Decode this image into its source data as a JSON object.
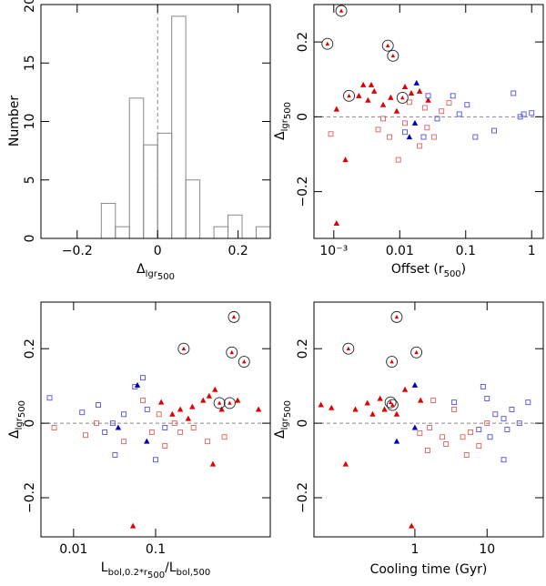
{
  "chart_data": [
    {
      "type": "histogram",
      "ylabel": "Number",
      "xlabel": [
        "Δ",
        "lgr",
        "500"
      ],
      "bins": [
        -0.14,
        -0.105,
        -0.07,
        -0.035,
        0,
        0.035,
        0.07,
        0.105,
        0.14,
        0.175,
        0.21,
        0.245,
        0.28
      ],
      "values": [
        3,
        1,
        12,
        8,
        9,
        19,
        5,
        0,
        1,
        2,
        0,
        1
      ],
      "color": "#888888",
      "xlim": [
        -0.29,
        0.28
      ],
      "ylim": [
        0,
        20
      ],
      "xticks": [
        {
          "value": -0.2,
          "label": "−0.2"
        },
        0,
        0.2
      ],
      "yticks": [
        0,
        5,
        10,
        15,
        20
      ],
      "zero_line": true
    },
    {
      "type": "scatter",
      "ylabel": [
        "Δ",
        "lgr",
        "500"
      ],
      "xlabel": [
        "Offset (r",
        "500",
        ")"
      ],
      "xlog": true,
      "xlim": [
        0.0005,
        1.5
      ],
      "ylim": [
        -0.325,
        0.3
      ],
      "xticks": [
        {
          "value": 0.001,
          "label": "10⁻³"
        },
        0.01,
        0.1,
        1
      ],
      "yticks": [
        {
          "value": -0.2,
          "label": "−0.2"
        },
        0,
        0.2
      ],
      "zero_line": true,
      "series": [
        {
          "color": "#e00000",
          "marker": "triangle",
          "x": [
            0.0011,
            0.0015,
            0.0024,
            0.0028,
            0.0033,
            0.0041,
            0.0056,
            0.0073,
            0.009,
            0.012,
            0.015,
            0.02,
            0.027,
            0.0011,
            0.0037
          ],
          "values": [
            0.02,
            -0.115,
            0.056,
            0.085,
            0.044,
            0.068,
            0.032,
            0.051,
            0.015,
            0.08,
            0.063,
            0.068,
            0.044,
            -0.285,
            0.085
          ]
        },
        {
          "color": "#e06060",
          "marker": "square",
          "x": [
            0.0009,
            0.0047,
            0.007,
            0.0095,
            0.012,
            0.02,
            0.033,
            0.043,
            0.056,
            0.026,
            0.0056,
            0.014,
            0.024
          ],
          "values": [
            -0.046,
            -0.034,
            -0.054,
            -0.115,
            -0.017,
            -0.078,
            -0.054,
            0.015,
            0.037,
            -0.029,
            -0.005,
            0.039,
            0.024
          ]
        },
        {
          "color": "#5050e0",
          "marker": "square",
          "x": [
            0.012,
            0.037,
            0.064,
            0.105,
            0.14,
            0.27,
            0.53,
            0.67,
            0.76,
            1.0,
            0.027,
            0.08,
            0.023
          ],
          "values": [
            -0.041,
            -0.005,
            0.056,
            0.032,
            -0.054,
            -0.037,
            0.063,
            0,
            0.007,
            0.01,
            0.056,
            0.007,
            -0.054
          ]
        },
        {
          "color": "#0000c0",
          "marker": "triangle",
          "x": [
            0.018,
            0.014,
            0.017
          ],
          "values": [
            0.09,
            -0.054,
            -0.017
          ]
        },
        {
          "color": "#222222",
          "fill": "#e00000",
          "marker": "circled",
          "x": [
            0.0013,
            0.0008,
            0.0066,
            0.0079,
            0.0017,
            0.011
          ],
          "values": [
            0.283,
            0.195,
            0.19,
            0.163,
            0.056,
            0.051
          ]
        }
      ]
    },
    {
      "type": "scatter",
      "ylabel": [
        "Δ",
        "lgr",
        "500"
      ],
      "xlabel": [
        "L",
        "bol,0.2*r",
        "500",
        "/L",
        "bol,500"
      ],
      "xlog": true,
      "xlim": [
        0.004,
        2.5
      ],
      "ylim": [
        -0.305,
        0.325
      ],
      "xticks": [
        0.01,
        0.1
      ],
      "yticks": [
        {
          "value": -0.2,
          "label": "−0.2"
        },
        0,
        0.2
      ],
      "zero_line": true,
      "series": [
        {
          "color": "#e00000",
          "marker": "triangle",
          "x": [
            0.117,
            0.2,
            0.28,
            0.38,
            0.45,
            0.53,
            0.64,
            1.0,
            1.8,
            0.5,
            0.25,
            0.16,
            0.053
          ],
          "values": [
            0.056,
            0.037,
            0.044,
            0.061,
            0.073,
            0.09,
            0.037,
            0.061,
            0.037,
            -0.11,
            0.012,
            0.024,
            -0.276
          ]
        },
        {
          "color": "#e06060",
          "marker": "square",
          "x": [
            0.0058,
            0.014,
            0.019,
            0.041,
            0.07,
            0.09,
            0.13,
            0.2,
            0.29,
            0.43,
            0.69,
            0.17,
            0.11
          ],
          "values": [
            -0.012,
            -0.032,
            0,
            -0.049,
            0.061,
            -0.024,
            -0.061,
            -0.024,
            -0.012,
            -0.049,
            -0.037,
            0,
            0.024
          ]
        },
        {
          "color": "#5050e0",
          "marker": "square",
          "x": [
            0.0051,
            0.0127,
            0.02,
            0.024,
            0.03,
            0.041,
            0.056,
            0.079,
            0.07,
            0.1,
            0.032,
            0.13
          ],
          "values": [
            0.068,
            0.029,
            0.049,
            -0.024,
            0,
            0.024,
            0.098,
            0.037,
            0.122,
            -0.098,
            -0.085,
            -0.012
          ]
        },
        {
          "color": "#0000c0",
          "marker": "triangle",
          "x": [
            0.06,
            0.078,
            0.035
          ],
          "values": [
            0.102,
            -0.049,
            -0.012
          ]
        },
        {
          "color": "#222222",
          "fill": "#e00000",
          "marker": "circled",
          "x": [
            0.9,
            0.22,
            0.85,
            1.2,
            0.6,
            0.8
          ],
          "values": [
            0.285,
            0.2,
            0.19,
            0.165,
            0.054,
            0.054
          ]
        }
      ]
    },
    {
      "type": "scatter",
      "ylabel": [
        "Δ",
        "lgr",
        "500"
      ],
      "xlabel": [
        "Cooling time (Gyr)"
      ],
      "xlog": true,
      "xlim": [
        0.04,
        60
      ],
      "ylim": [
        -0.305,
        0.325
      ],
      "xticks": [
        1,
        10
      ],
      "yticks": [
        {
          "value": -0.2,
          "label": "−0.2"
        },
        0,
        0.2
      ],
      "zero_line": true,
      "series": [
        {
          "color": "#e00000",
          "marker": "triangle",
          "x": [
            0.11,
            0.05,
            0.07,
            0.15,
            0.22,
            0.33,
            0.73,
            0.9,
            0.26,
            0.38,
            0.56,
            1.2
          ],
          "values": [
            -0.11,
            0.049,
            0.041,
            0.037,
            0.054,
            0.066,
            0.09,
            -0.276,
            0.024,
            0.037,
            0.024,
            0.061
          ]
        },
        {
          "color": "#e06060",
          "marker": "square",
          "x": [
            1.17,
            1.6,
            2.4,
            3.5,
            5.2,
            2.7,
            5.9,
            10,
            1.8,
            1.5,
            4.6,
            7.7
          ],
          "values": [
            -0.027,
            -0.012,
            -0.037,
            0.037,
            -0.085,
            -0.056,
            -0.024,
            0,
            0.061,
            -0.073,
            -0.037,
            -0.061
          ]
        },
        {
          "color": "#5050e0",
          "marker": "square",
          "x": [
            8.8,
            10,
            13,
            17,
            22,
            28,
            37,
            17,
            7.7,
            11,
            19,
            3.5
          ],
          "values": [
            0.098,
            0.066,
            0.024,
            0.012,
            0.037,
            0,
            0.056,
            -0.098,
            -0.017,
            -0.037,
            -0.017,
            0.056
          ]
        },
        {
          "color": "#0000c0",
          "marker": "triangle",
          "x": [
            1,
            0.56,
            1
          ],
          "values": [
            0.102,
            -0.049,
            -0.012
          ]
        },
        {
          "color": "#222222",
          "fill": "#e00000",
          "marker": "circled",
          "x": [
            0.56,
            0.12,
            0.48,
            1.05,
            0.46,
            0.49
          ],
          "values": [
            0.285,
            0.2,
            0.165,
            0.19,
            0.056,
            0.049
          ]
        }
      ]
    }
  ]
}
